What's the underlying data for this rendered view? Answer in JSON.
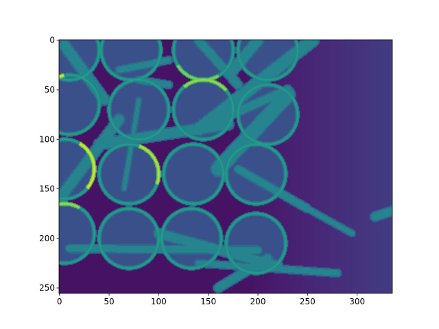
{
  "chart_data": {
    "type": "heatmap",
    "title": "",
    "xlabel": "",
    "ylabel": "",
    "image_shape": [
      256,
      336
    ],
    "xlim": [
      -0.5,
      335.5
    ],
    "ylim": [
      255.5,
      -0.5
    ],
    "y_axis_inverted": true,
    "colormap": "viridis",
    "colorbar": false,
    "x_ticks": [
      0,
      50,
      100,
      150,
      200,
      250,
      300
    ],
    "y_ticks": [
      0,
      50,
      100,
      150,
      200,
      250
    ],
    "x_tick_labels": [
      "0",
      "50",
      "100",
      "150",
      "200",
      "250",
      "300"
    ],
    "y_tick_labels": [
      "0",
      "50",
      "100",
      "150",
      "200",
      "250"
    ],
    "content": "grayscale microscopy-like image of circular wells arranged in a grid with overlapping elongated strands, background level varying",
    "wells": [
      {
        "cx": 10,
        "cy": 10,
        "r": 30
      },
      {
        "cx": 72,
        "cy": 10,
        "r": 30
      },
      {
        "cx": 145,
        "cy": 10,
        "r": 30
      },
      {
        "cx": 210,
        "cy": 10,
        "r": 30
      },
      {
        "cx": 10,
        "cy": 65,
        "r": 30
      },
      {
        "cx": 80,
        "cy": 70,
        "r": 30
      },
      {
        "cx": 145,
        "cy": 70,
        "r": 30
      },
      {
        "cx": 210,
        "cy": 75,
        "r": 30
      },
      {
        "cx": 5,
        "cy": 130,
        "r": 30
      },
      {
        "cx": 70,
        "cy": 135,
        "r": 30
      },
      {
        "cx": 135,
        "cy": 135,
        "r": 30
      },
      {
        "cx": 198,
        "cy": 135,
        "r": 30
      },
      {
        "cx": 5,
        "cy": 195,
        "r": 30
      },
      {
        "cx": 70,
        "cy": 200,
        "r": 30
      },
      {
        "cx": 133,
        "cy": 200,
        "r": 30
      },
      {
        "cx": 198,
        "cy": 205,
        "r": 30
      }
    ],
    "strands": [
      {
        "x1": 5,
        "y1": 5,
        "x2": 45,
        "y2": 60,
        "w": 10
      },
      {
        "x1": 60,
        "y1": 30,
        "x2": 110,
        "y2": 20,
        "w": 6
      },
      {
        "x1": 140,
        "y1": 0,
        "x2": 180,
        "y2": 45,
        "w": 8
      },
      {
        "x1": 175,
        "y1": 30,
        "x2": 200,
        "y2": 0,
        "w": 10
      },
      {
        "x1": 140,
        "y1": 90,
        "x2": 255,
        "y2": 0,
        "w": 12
      },
      {
        "x1": 150,
        "y1": 85,
        "x2": 230,
        "y2": 50,
        "w": 8
      },
      {
        "x1": 40,
        "y1": 105,
        "x2": 170,
        "y2": 85,
        "w": 10
      },
      {
        "x1": 80,
        "y1": 40,
        "x2": 110,
        "y2": 45,
        "w": 6
      },
      {
        "x1": 0,
        "y1": 160,
        "x2": 60,
        "y2": 80,
        "w": 10
      },
      {
        "x1": 160,
        "y1": 130,
        "x2": 230,
        "y2": 55,
        "w": 14
      },
      {
        "x1": 180,
        "y1": 130,
        "x2": 250,
        "y2": 170,
        "w": 7
      },
      {
        "x1": 250,
        "y1": 170,
        "x2": 295,
        "y2": 195,
        "w": 5
      },
      {
        "x1": 10,
        "y1": 210,
        "x2": 200,
        "y2": 212,
        "w": 7
      },
      {
        "x1": 100,
        "y1": 195,
        "x2": 220,
        "y2": 228,
        "w": 9
      },
      {
        "x1": 140,
        "y1": 225,
        "x2": 280,
        "y2": 235,
        "w": 6
      },
      {
        "x1": 160,
        "y1": 250,
        "x2": 210,
        "y2": 220,
        "w": 8
      },
      {
        "x1": 65,
        "y1": 150,
        "x2": 80,
        "y2": 60,
        "w": 4
      },
      {
        "x1": 318,
        "y1": 178,
        "x2": 336,
        "y2": 172,
        "w": 8
      }
    ],
    "ring_intensity": 0.6,
    "bright_ring_arcs": [
      {
        "well": 4,
        "from_deg": 150,
        "to_deg": 260,
        "intensity": 1.0
      },
      {
        "well": 8,
        "from_deg": -60,
        "to_deg": 40,
        "intensity": 1.0
      },
      {
        "well": 9,
        "from_deg": -70,
        "to_deg": 20,
        "intensity": 0.95
      },
      {
        "well": 6,
        "from_deg": 230,
        "to_deg": 320,
        "intensity": 0.9
      },
      {
        "well": 12,
        "from_deg": 200,
        "to_deg": 300,
        "intensity": 0.9
      },
      {
        "well": 2,
        "from_deg": 60,
        "to_deg": 150,
        "intensity": 0.85
      }
    ],
    "strand_intensity": 0.45,
    "well_interior_intensity": 0.25,
    "background_intensity_left": 0.05,
    "background_intensity_right": 0.18
  }
}
